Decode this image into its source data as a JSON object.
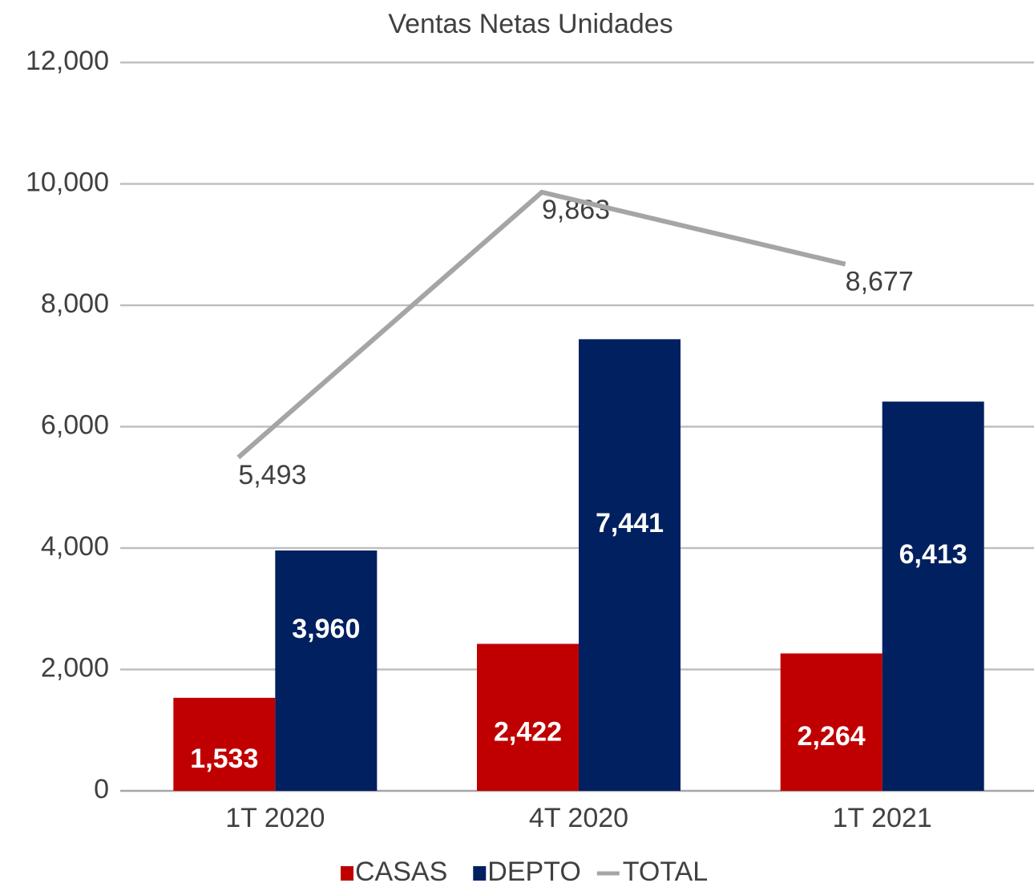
{
  "chart_data": {
    "type": "bar-line",
    "title": "Ventas Netas Unidades",
    "categories": [
      "1T 2020",
      "4T 2020",
      "1T 2021"
    ],
    "series": [
      {
        "name": "CASAS",
        "type": "bar",
        "color": "#c00000",
        "values": [
          1533,
          2422,
          2264
        ],
        "value_labels": [
          "1,533",
          "2,422",
          "2,264"
        ]
      },
      {
        "name": "DEPTO",
        "type": "bar",
        "color": "#002060",
        "values": [
          3960,
          7441,
          6413
        ],
        "value_labels": [
          "3,960",
          "7,441",
          "6,413"
        ]
      },
      {
        "name": "TOTAL",
        "type": "line",
        "color": "#a5a5a5",
        "values": [
          5493,
          9863,
          8677
        ],
        "value_labels": [
          "5,493",
          "9,863",
          "8,677"
        ]
      }
    ],
    "ylim": [
      0,
      12000
    ],
    "yticks": [
      0,
      {
        "value": 2000,
        "label": "2,000"
      },
      {
        "value": 4000,
        "label": "4,000"
      },
      {
        "value": 6000,
        "label": "6,000"
      },
      {
        "value": 8000,
        "label": "8,000"
      },
      {
        "value": 10000,
        "label": "10,000"
      },
      {
        "value": 12000,
        "label": "12,000"
      }
    ],
    "grid": true,
    "legend": "bottom"
  }
}
